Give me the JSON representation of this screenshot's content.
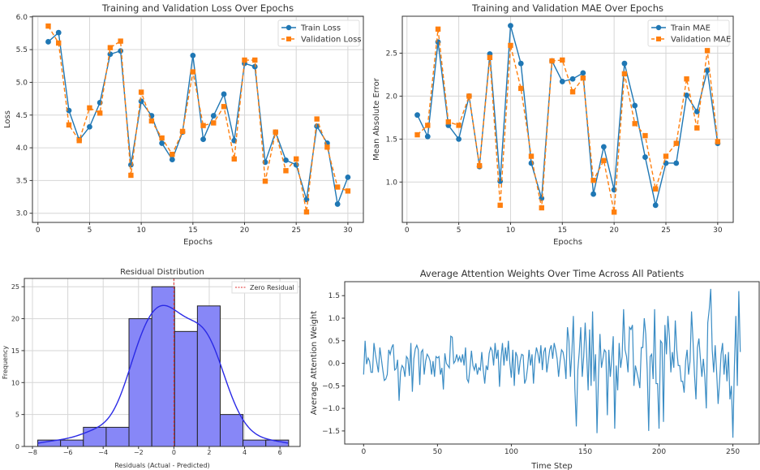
{
  "colors": {
    "train": "#1f77b4",
    "val": "#ff7f0e",
    "hist_fill": "#8787f7",
    "kde": "#2a2ae6",
    "zero_line": "#e03030",
    "line": "#3a8cc4"
  },
  "chart_data": [
    {
      "type": "line",
      "title": "Training and Validation Loss Over Epochs",
      "xlabel": "Epochs",
      "ylabel": "Loss",
      "xlim": [
        -0.53,
        31.5
      ],
      "ylim": [
        2.86,
        6.01
      ],
      "xticks": [
        "0",
        "5",
        "10",
        "15",
        "20",
        "25",
        "30"
      ],
      "yticks": [
        "3.0",
        "3.5",
        "4.0",
        "4.5",
        "5.0",
        "5.5",
        "6.0"
      ],
      "grid": true,
      "legend_position": "top-right",
      "x": [
        1,
        2,
        3,
        4,
        5,
        6,
        7,
        8,
        9,
        10,
        11,
        12,
        13,
        14,
        15,
        16,
        17,
        18,
        19,
        20,
        21,
        22,
        23,
        24,
        25,
        26,
        27,
        28,
        29,
        30
      ],
      "series": [
        {
          "name": "Train Loss",
          "style": "solid-circle",
          "values": [
            5.62,
            5.76,
            4.57,
            4.12,
            4.32,
            4.69,
            5.43,
            5.48,
            3.74,
            4.71,
            4.49,
            4.07,
            3.82,
            4.24,
            5.41,
            4.13,
            4.49,
            4.82,
            4.11,
            5.29,
            5.24,
            3.78,
            4.24,
            3.81,
            3.74,
            3.21,
            4.33,
            4.07,
            3.14,
            3.55
          ]
        },
        {
          "name": "Validation Loss",
          "style": "dashed-square",
          "values": [
            5.86,
            5.6,
            4.35,
            4.11,
            4.61,
            4.53,
            5.53,
            5.63,
            3.58,
            4.85,
            4.41,
            4.15,
            3.9,
            4.25,
            5.16,
            4.34,
            4.38,
            4.63,
            3.83,
            5.34,
            5.34,
            3.49,
            4.24,
            3.65,
            3.83,
            3.02,
            4.44,
            4.01,
            3.4,
            3.34
          ]
        }
      ]
    },
    {
      "type": "line",
      "title": "Training and Validation MAE Over Epochs",
      "xlabel": "Epochs",
      "ylabel": "Mean Absolute Error",
      "xlim": [
        -0.45,
        31.5
      ],
      "ylim": [
        0.53,
        2.93
      ],
      "xticks": [
        "0",
        "5",
        "10",
        "15",
        "20",
        "25",
        "30"
      ],
      "yticks": [
        "1.0",
        "1.5",
        "2.0",
        "2.5"
      ],
      "grid": true,
      "legend_position": "top-right",
      "x": [
        1,
        2,
        3,
        4,
        5,
        6,
        7,
        8,
        9,
        10,
        11,
        12,
        13,
        14,
        15,
        16,
        17,
        18,
        19,
        20,
        21,
        22,
        23,
        24,
        25,
        26,
        27,
        28,
        29,
        30
      ],
      "series": [
        {
          "name": "Train MAE",
          "style": "solid-circle",
          "values": [
            1.78,
            1.53,
            2.63,
            1.66,
            1.5,
            2.0,
            1.18,
            2.49,
            1.01,
            2.82,
            2.38,
            1.22,
            0.81,
            2.41,
            2.17,
            2.2,
            2.27,
            0.86,
            1.41,
            0.91,
            2.38,
            1.89,
            1.29,
            0.73,
            1.22,
            1.22,
            2.01,
            1.82,
            2.3,
            1.45
          ]
        },
        {
          "name": "Validation MAE",
          "style": "dashed-square",
          "values": [
            1.55,
            1.66,
            2.78,
            1.7,
            1.66,
            2.0,
            1.19,
            2.45,
            0.73,
            2.59,
            2.09,
            1.3,
            0.7,
            2.41,
            2.42,
            2.05,
            2.21,
            1.02,
            1.25,
            0.65,
            2.26,
            1.68,
            1.54,
            0.92,
            1.3,
            1.45,
            2.2,
            1.63,
            2.53,
            1.47
          ]
        }
      ]
    },
    {
      "type": "bar",
      "subtype": "histogram-with-kde",
      "title": "Residual Distribution",
      "xlabel": "Residuals (Actual - Predicted)",
      "ylabel": "Frequency",
      "xlim": [
        -8.46,
        7.14
      ],
      "ylim": [
        0,
        26.3
      ],
      "xticks": [
        "−8",
        "−6",
        "−4",
        "−2",
        "0",
        "2",
        "4",
        "6"
      ],
      "yticks": [
        "0",
        "5",
        "10",
        "15",
        "20",
        "25"
      ],
      "grid": true,
      "legend_position": "top-right",
      "bin_edges": [
        -7.7,
        -6.41,
        -5.12,
        -3.83,
        -2.54,
        -1.25,
        0.04,
        1.33,
        2.62,
        3.91,
        5.2,
        6.49
      ],
      "counts": [
        1,
        1,
        3,
        3,
        20,
        25,
        18,
        22,
        5,
        1,
        1
      ],
      "kde_bandwidth": 0.95,
      "reference_line": {
        "x": 0,
        "label": "Zero Residual"
      }
    },
    {
      "type": "line",
      "title": "Average Attention Weights Over Time Across All Patients",
      "xlabel": "Time Step",
      "ylabel": "Average Attention Weight",
      "xlim": [
        -12.8,
        267.8
      ],
      "ylim": [
        -1.79,
        1.81
      ],
      "xticks": [
        "0",
        "50",
        "100",
        "150",
        "200",
        "250"
      ],
      "yticks": [
        "−1.5",
        "−1.0",
        "−0.5",
        "0.0",
        "0.5",
        "1.0",
        "1.5"
      ],
      "grid": false,
      "series": [
        {
          "name": "Average Attention Weight",
          "values": [
            -0.25,
            0.5,
            -0.02,
            0.12,
            0.05,
            -0.2,
            -0.2,
            0.45,
            0.2,
            0.0,
            -0.2,
            0.35,
            0.1,
            -0.15,
            -0.38,
            -0.35,
            -0.25,
            0.3,
            0.2,
            0.35,
            0.42,
            -0.15,
            -0.12,
            0.08,
            -0.83,
            -0.2,
            -0.05,
            -0.1,
            -0.3,
            0.15,
            0.1,
            -0.28,
            0.45,
            -0.63,
            0.1,
            0.32,
            0.4,
            0.3,
            -0.48,
            0.25,
            0.3,
            -0.25,
            0.05,
            0.2,
            0.15,
            0.05,
            -0.25,
            0.05,
            -0.3,
            0.15,
            0.12,
            0.15,
            -0.25,
            -0.1,
            -0.58,
            0.22,
            0.0,
            -0.05,
            -0.1,
            0.6,
            0.58,
            0.0,
            0.05,
            0.2,
            0.05,
            0.15,
            0.02,
            0.2,
            -0.05,
            0.35,
            -0.35,
            -0.42,
            -0.1,
            0.28,
            -0.05,
            -0.15,
            0.0,
            -0.25,
            -0.1,
            -0.15,
            0.25,
            -0.15,
            -0.45,
            -0.05,
            -0.15,
            0.22,
            0.35,
            0.28,
            -0.05,
            0.45,
            0.1,
            0.3,
            -0.52,
            0.1,
            0.45,
            -0.05,
            0.35,
            0.05,
            0.5,
            0.0,
            -0.32,
            0.3,
            -0.5,
            0.25,
            0.15,
            -0.25,
            0.05,
            0.2,
            0.18,
            -0.45,
            -0.35,
            -0.1,
            0.3,
            -0.05,
            0.2,
            -0.45,
            0.1,
            0.35,
            0.22,
            0.0,
            0.4,
            -0.15,
            0.25,
            0.35,
            -0.2,
            0.05,
            0.3,
            0.4,
            0.1,
            0.45,
            0.3,
            0.1,
            -0.3,
            0.05,
            0.3,
            0.25,
            0.05,
            -0.35,
            0.8,
            0.5,
            -0.3,
            0.25,
            1.05,
            -0.55,
            -1.4,
            -0.15,
            0.25,
            0.8,
            -0.3,
            0.15,
            0.9,
            0.2,
            -0.6,
            0.75,
            -0.5,
            1.15,
            -0.4,
            0.2,
            -1.55,
            -0.3,
            0.65,
            -0.1,
            0.1,
            0.3,
            0.25,
            -1.15,
            0.3,
            -0.3,
            0.1,
            0.6,
            -1.45,
            -0.05,
            -0.6,
            0.45,
            -0.1,
            0.15,
            1.2,
            0.3,
            0.15,
            -0.2,
            0.8,
            0.75,
            0.85,
            -0.5,
            -0.05,
            -0.2,
            -0.35,
            -0.55,
            0.35,
            0.35,
            1.0,
            0.65,
            -0.15,
            -1.5,
            0.15,
            0.2,
            -0.35,
            1.2,
            -0.45,
            -0.45,
            -1.45,
            0.5,
            0.45,
            -1.3,
            0.85,
            0.2,
            1.05,
            0.6,
            -0.2,
            0.25,
            -0.1,
            0.95,
            0.3,
            -0.05,
            -0.05,
            -0.4,
            -0.4,
            -0.65,
            0.05,
            0.3,
            -0.25,
            0.05,
            1.15,
            0.5,
            -0.25,
            -0.8,
            0.35,
            0.55,
            0.1,
            -0.3,
            0.1,
            -0.3,
            -1.0,
            0.9,
            1.2,
            1.65,
            0.3,
            -0.2,
            0.4,
            -0.2,
            -0.9,
            -0.4,
            0.2,
            0.45,
            -0.25,
            0.2,
            -0.4,
            0.25,
            -0.8,
            -0.5,
            -1.65,
            -0.1,
            1.05,
            -0.5,
            1.6,
            0.25
          ]
        }
      ]
    }
  ]
}
